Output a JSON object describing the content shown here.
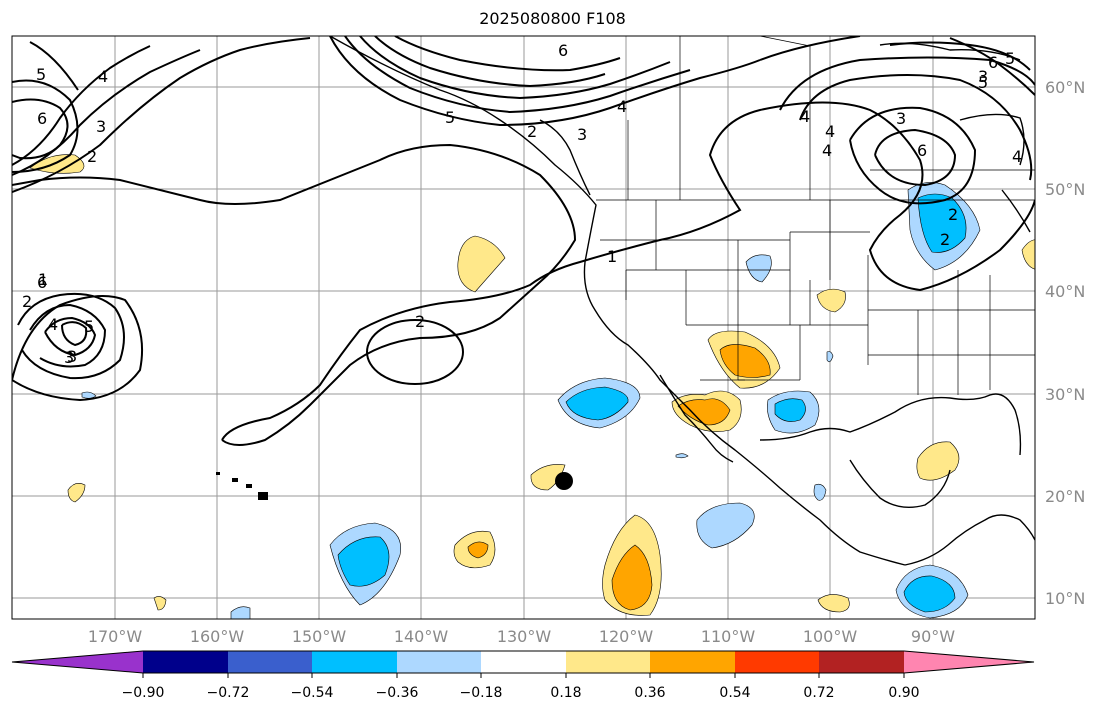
{
  "title": "2025080800 F108",
  "map": {
    "lat_labels": [
      "60°N",
      "50°N",
      "40°N",
      "30°N",
      "20°N",
      "10°N"
    ],
    "lon_labels": [
      "170°W",
      "160°W",
      "150°W",
      "140°W",
      "130°W",
      "120°W",
      "110°W",
      "100°W",
      "90°W"
    ],
    "contour_labels": [
      "5",
      "4",
      "6",
      "3",
      "2",
      "2",
      "1",
      "4",
      "5",
      "3",
      "2",
      "6",
      "3",
      "4",
      "5",
      "6",
      "3",
      "4",
      "1",
      "2",
      "4",
      "3",
      "4",
      "5",
      "6",
      "4",
      "5",
      "3",
      "2",
      "6",
      "2"
    ]
  },
  "colorbar": {
    "tick_labels": [
      "−0.90",
      "−0.72",
      "−0.54",
      "−0.36",
      "−0.18",
      "0.18",
      "0.36",
      "0.54",
      "0.72",
      "0.90"
    ],
    "colors": [
      "#9932cc",
      "#00008b",
      "#3a5fcd",
      "#00bfff",
      "#add8ff",
      "#ffffff",
      "#ffe88a",
      "#ffa500",
      "#ff3a00",
      "#b22222",
      "#ff85b0"
    ]
  }
}
